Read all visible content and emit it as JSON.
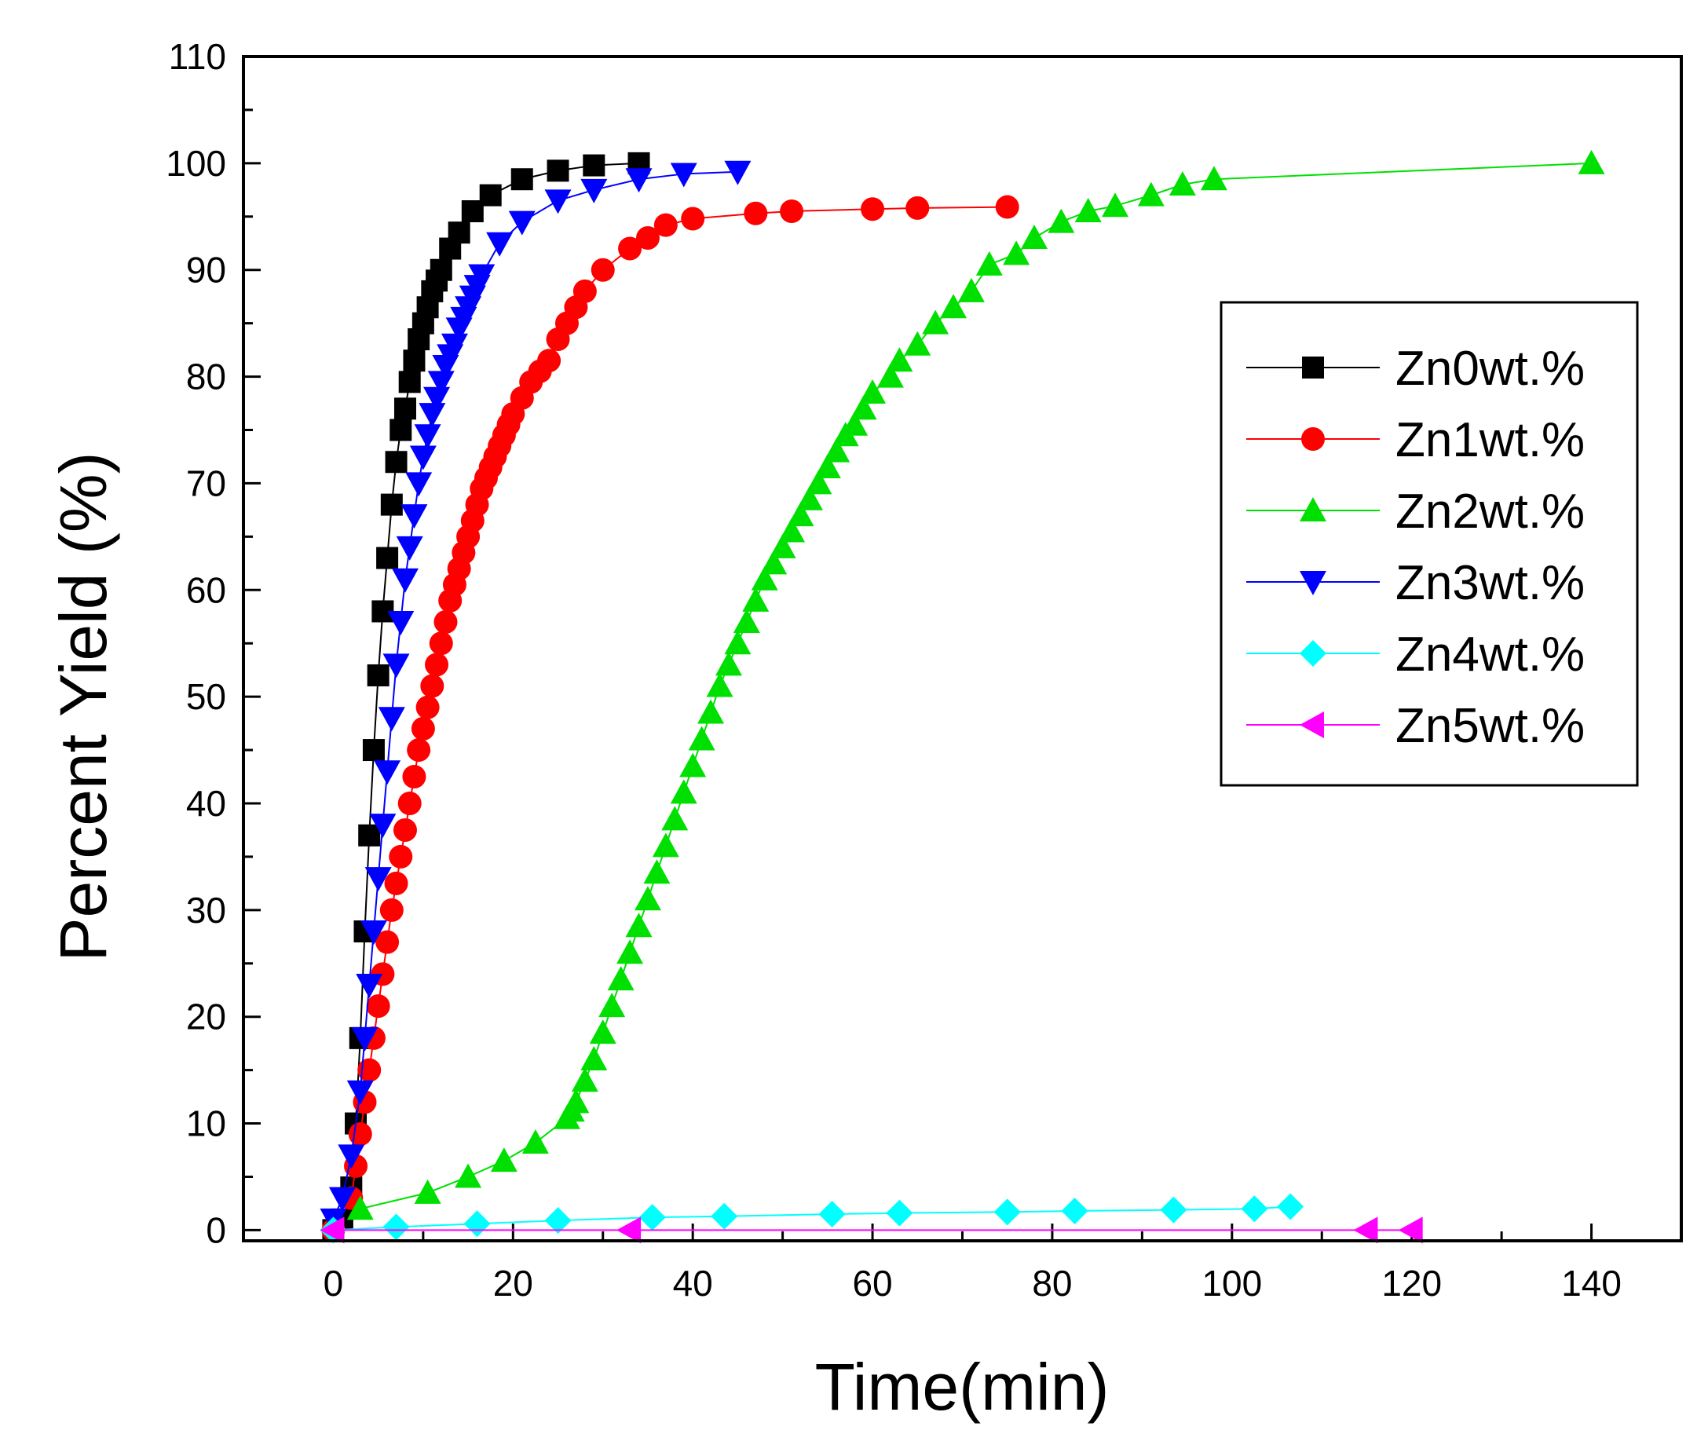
{
  "chart_data": {
    "type": "line",
    "title": "",
    "xlabel": "Time(min)",
    "ylabel": "Percent  Yield (%)",
    "xlim": [
      -10,
      150
    ],
    "ylim": [
      -1,
      110
    ],
    "xticks": [
      0,
      20,
      40,
      60,
      80,
      100,
      120,
      140
    ],
    "yticks": [
      0,
      10,
      20,
      30,
      40,
      50,
      60,
      70,
      80,
      90,
      100,
      110
    ],
    "xtick_labels": [
      "0",
      "20",
      "40",
      "60",
      "80",
      "100",
      "120",
      "140"
    ],
    "ytick_labels": [
      "0",
      "10",
      "20",
      "30",
      "40",
      "50",
      "60",
      "70",
      "80",
      "90",
      "100",
      "110"
    ],
    "legend_position": "right",
    "series": [
      {
        "name": "Zn0wt.%",
        "color": "#000000",
        "marker": "square",
        "x": [
          0,
          1,
          2,
          2.5,
          3,
          3.5,
          4,
          4.5,
          5,
          5.5,
          6,
          6.5,
          7,
          7.5,
          8,
          8.5,
          9,
          9.5,
          10,
          10.5,
          11,
          11.5,
          12,
          13,
          14,
          15.5,
          17.5,
          21,
          25,
          29,
          34
        ],
        "y": [
          0,
          1,
          4,
          10,
          18,
          28,
          37,
          45,
          52,
          58,
          63,
          68,
          72,
          75,
          77,
          79.5,
          81.5,
          83.5,
          85,
          86.5,
          88,
          89,
          90,
          92,
          93.5,
          95.5,
          97,
          98.5,
          99.3,
          99.8,
          100
        ]
      },
      {
        "name": "Zn1wt.%",
        "color": "#ff0000",
        "marker": "circle",
        "x": [
          0,
          2,
          2.5,
          3,
          3.5,
          4,
          4.5,
          5,
          5.5,
          6,
          6.5,
          7,
          7.5,
          8,
          8.5,
          9,
          9.5,
          10,
          10.5,
          11,
          11.5,
          12,
          12.5,
          13,
          13.5,
          14,
          14.5,
          15,
          15.5,
          16,
          16.5,
          17,
          17.5,
          18,
          18.5,
          19,
          19.5,
          20,
          21,
          22,
          23,
          24,
          25,
          26,
          27,
          28,
          30,
          33,
          35,
          37,
          40,
          47,
          51,
          60,
          65,
          75
        ],
        "y": [
          0,
          3,
          6,
          9,
          12,
          15,
          18,
          21,
          24,
          27,
          30,
          32.5,
          35,
          37.5,
          40,
          42.5,
          45,
          47,
          49,
          51,
          53,
          55,
          57,
          59,
          60.5,
          62,
          63.5,
          65,
          66.5,
          68,
          69.5,
          70.5,
          71.5,
          72.5,
          73.5,
          74.5,
          75.5,
          76.5,
          78,
          79.5,
          80.5,
          81.5,
          83.5,
          85,
          86.5,
          88,
          90,
          92,
          93,
          94.2,
          94.8,
          95.3,
          95.5,
          95.7,
          95.8,
          95.9
        ]
      },
      {
        "name": "Zn2wt.%",
        "color": "#00e000",
        "marker": "triangle-up",
        "x": [
          3,
          10.5,
          15,
          19,
          22.5,
          26,
          26.5,
          27,
          28,
          29,
          30,
          31,
          32,
          33,
          34,
          35,
          36,
          37,
          38,
          39,
          40,
          41,
          42,
          43,
          44,
          45,
          46,
          47,
          48,
          49,
          50,
          51,
          52,
          53,
          54,
          55,
          56,
          57,
          58,
          59,
          60,
          62,
          63,
          65,
          67,
          69,
          71,
          73,
          76,
          78,
          81,
          84,
          87,
          91,
          94.5,
          98,
          140
        ],
        "y": [
          2,
          3.5,
          5,
          6.5,
          8.2,
          10.5,
          11.2,
          12,
          14,
          16,
          18.5,
          21,
          23.5,
          26,
          28.5,
          31,
          33.5,
          36,
          38.5,
          41,
          43.5,
          46,
          48.5,
          51,
          53,
          55,
          57,
          59,
          61,
          62.5,
          64,
          65.5,
          67,
          68.5,
          70,
          71.5,
          73,
          74.5,
          75.5,
          77,
          78.5,
          80,
          81.5,
          83,
          85,
          86.5,
          88,
          90.5,
          91.5,
          93,
          94.5,
          95.5,
          96,
          97,
          98,
          98.5,
          100
        ]
      },
      {
        "name": "Zn3wt.%",
        "color": "#0000ff",
        "marker": "triangle-down",
        "x": [
          0,
          1,
          2,
          3,
          3.5,
          4,
          4.5,
          5,
          5.5,
          6,
          6.5,
          7,
          7.5,
          8,
          8.5,
          9,
          9.5,
          10,
          10.5,
          11,
          11.5,
          12,
          12.5,
          13,
          13.5,
          14,
          14.5,
          15,
          15.5,
          16,
          16.5,
          18.5,
          21,
          25,
          29,
          34,
          39,
          45
        ],
        "y": [
          1,
          3,
          7,
          13,
          18,
          23,
          28,
          33,
          38,
          43,
          48,
          53,
          57,
          61,
          64,
          67,
          70,
          72.5,
          74.5,
          76.5,
          78,
          79.5,
          81,
          82,
          83,
          84.5,
          85.5,
          86.5,
          87.5,
          88.5,
          89.5,
          92.5,
          94.5,
          96.5,
          97.5,
          98.5,
          99,
          99.2
        ]
      },
      {
        "name": "Zn4wt.%",
        "color": "#00ffff",
        "marker": "diamond",
        "x": [
          0,
          7,
          16,
          25,
          35.5,
          43.5,
          55.5,
          63,
          75,
          82.5,
          93.5,
          102.5,
          106.5
        ],
        "y": [
          0,
          0.3,
          0.6,
          0.9,
          1.2,
          1.3,
          1.5,
          1.6,
          1.7,
          1.8,
          1.9,
          2.0,
          2.2
        ]
      },
      {
        "name": "Zn5wt.%",
        "color": "#ff00ff",
        "marker": "triangle-left",
        "x": [
          0,
          33,
          115,
          120
        ],
        "y": [
          0,
          0,
          0,
          0
        ]
      }
    ]
  }
}
